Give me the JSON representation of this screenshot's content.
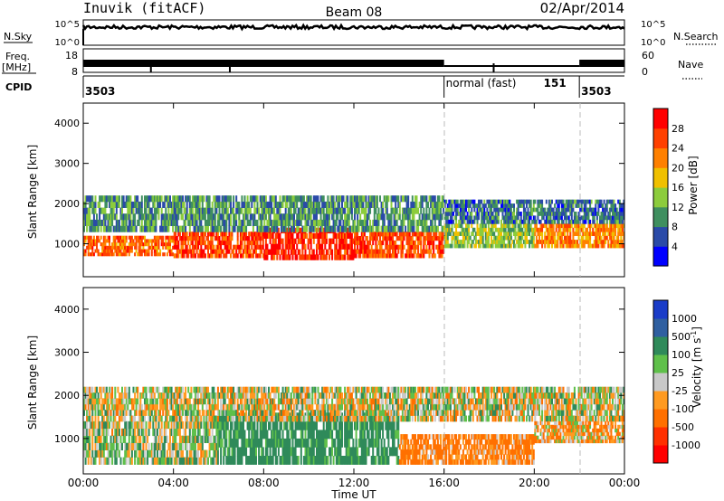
{
  "header": {
    "station": "Inuvik (fitACF)",
    "beam": "Beam 08",
    "date": "02/Apr/2014"
  },
  "noise_panel": {
    "left_label": "N.Sky",
    "left_ticks": [
      "10^5",
      "10^0"
    ],
    "right_label": "N.Search",
    "right_ticks": [
      "10^5",
      "10^0"
    ]
  },
  "freq_panel": {
    "left_label_top": "Freq.",
    "left_label_unit": "[MHz]",
    "left_ticks": [
      "18",
      "8"
    ],
    "right_label": "Nave",
    "right_ticks": [
      "60",
      "0"
    ]
  },
  "cpid": {
    "label": "CPID",
    "segments": [
      {
        "start_hour": 0,
        "end_hour": 16,
        "id": "3503",
        "name": ""
      },
      {
        "start_hour": 16,
        "end_hour": 22,
        "id": "151",
        "name": "normal (fast)"
      },
      {
        "start_hour": 22,
        "end_hour": 24,
        "id": "3503",
        "name": ""
      }
    ]
  },
  "x_axis": {
    "label": "Time UT",
    "ticks": [
      "00:00",
      "04:00",
      "08:00",
      "12:00",
      "16:00",
      "20:00",
      "00:00"
    ]
  },
  "power_colorbar": {
    "label": "Power [dB]",
    "ticks": [
      "28",
      "24",
      "20",
      "16",
      "12",
      "8",
      "4"
    ],
    "colors": [
      "#0000ff",
      "#2a4aa8",
      "#3f8f5f",
      "#8ccc3c",
      "#f0c000",
      "#ff8000",
      "#ff4000",
      "#ff0000"
    ]
  },
  "velocity_colorbar": {
    "label": "Velocity [m s",
    "label_sup": "-1",
    "label_end": "]",
    "ticks": [
      "1000",
      "500",
      "100",
      "25",
      "-25",
      "-100",
      "-500",
      "-1000"
    ],
    "colors": [
      "#1a3cc8",
      "#2f5fa0",
      "#2f8a5a",
      "#5fc04a",
      "#c8c8c8",
      "#ff9a20",
      "#ff7000",
      "#ff3000",
      "#ff0000"
    ]
  },
  "chart_data": [
    {
      "type": "heatmap",
      "title": "",
      "xlabel": "Time UT",
      "ylabel": "Slant Range [km]",
      "xlim": [
        0,
        24
      ],
      "ylim": [
        180,
        4500
      ],
      "yticks": [
        "4000",
        "3000",
        "2000",
        "1000"
      ],
      "colorbar_label": "Power [dB]",
      "bands": [
        {
          "from_hour": 0.0,
          "to_hour": 4.0,
          "range_min": 700,
          "range_max": 1200,
          "value_db": 24
        },
        {
          "from_hour": 4.0,
          "to_hour": 8.0,
          "range_min": 650,
          "range_max": 1300,
          "value_db": 26
        },
        {
          "from_hour": 8.0,
          "to_hour": 12.0,
          "range_min": 600,
          "range_max": 1400,
          "value_db": 28
        },
        {
          "from_hour": 12.0,
          "to_hour": 16.0,
          "range_min": 650,
          "range_max": 1300,
          "value_db": 26
        },
        {
          "from_hour": 16.0,
          "to_hour": 20.0,
          "range_min": 900,
          "range_max": 1500,
          "value_db": 14
        },
        {
          "from_hour": 20.0,
          "to_hour": 24.0,
          "range_min": 900,
          "range_max": 1500,
          "value_db": 22
        },
        {
          "from_hour": 0.0,
          "to_hour": 16.0,
          "range_min": 1300,
          "range_max": 2200,
          "value_db": 10
        },
        {
          "from_hour": 16.0,
          "to_hour": 24.0,
          "range_min": 1500,
          "range_max": 2100,
          "value_db": 8
        }
      ]
    },
    {
      "type": "heatmap",
      "title": "",
      "xlabel": "Time UT",
      "ylabel": "Slant Range [km]",
      "xlim": [
        0,
        24
      ],
      "ylim": [
        180,
        4500
      ],
      "yticks": [
        "4000",
        "3000",
        "2000",
        "1000"
      ],
      "colorbar_label": "Velocity [m s-1]",
      "bands": [
        {
          "from_hour": 0.0,
          "to_hour": 6.0,
          "range_min": 400,
          "range_max": 1400,
          "value_ms": 40
        },
        {
          "from_hour": 6.0,
          "to_hour": 14.0,
          "range_min": 400,
          "range_max": 1600,
          "value_ms": 200
        },
        {
          "from_hour": 14.0,
          "to_hour": 20.0,
          "range_min": 400,
          "range_max": 1100,
          "value_ms": -150
        },
        {
          "from_hour": 0.0,
          "to_hour": 24.0,
          "range_min": 1400,
          "range_max": 2200,
          "value_ms": 0
        },
        {
          "from_hour": 20.0,
          "to_hour": 24.0,
          "range_min": 900,
          "range_max": 1400,
          "value_ms": -80
        }
      ]
    }
  ]
}
